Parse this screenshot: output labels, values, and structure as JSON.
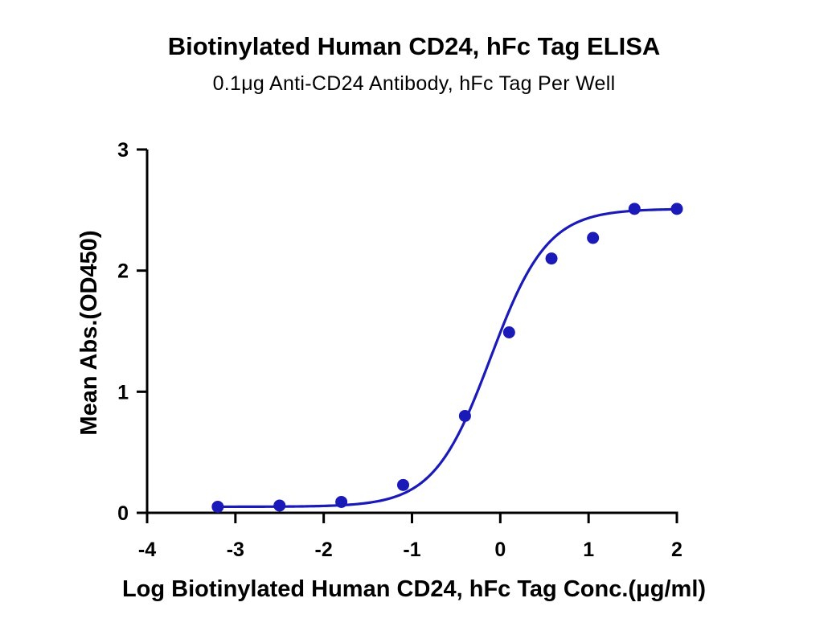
{
  "chart_data": {
    "type": "scatter",
    "title": "Biotinylated Human CD24, hFc Tag ELISA",
    "subtitle": "0.1μg Anti-CD24 Antibody, hFc Tag Per Well",
    "xlabel": "Log Biotinylated Human CD24, hFc Tag Conc.(μg/ml)",
    "ylabel": "Mean Abs.(OD450)",
    "xlim": [
      -4,
      2
    ],
    "ylim": [
      0,
      3
    ],
    "x_ticks": [
      "-4",
      "-3",
      "-2",
      "-1",
      "0",
      "1",
      "2"
    ],
    "y_ticks": [
      "0",
      "1",
      "2",
      "3"
    ],
    "grid": false,
    "colors": {
      "series": "#1a1ab8",
      "axis": "#000000"
    },
    "series": [
      {
        "x": [
          -3.2,
          -2.5,
          -1.8,
          -1.1,
          -0.4,
          0.1,
          0.58,
          1.05,
          1.52,
          2.0
        ],
        "y": [
          0.05,
          0.06,
          0.09,
          0.23,
          0.8,
          1.49,
          2.1,
          2.27,
          2.51,
          2.51
        ]
      }
    ],
    "fit": {
      "model": "4PL",
      "bottom": 0.05,
      "top": 2.51,
      "log_ec50": -0.11,
      "hill_slope": 1.35
    }
  }
}
